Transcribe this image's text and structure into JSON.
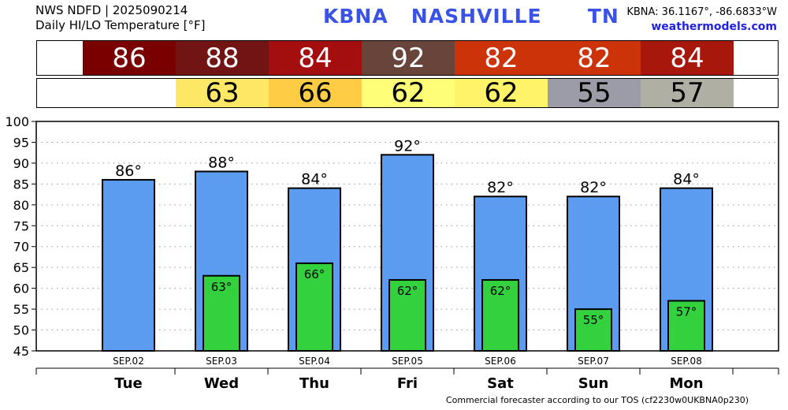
{
  "header": {
    "line1": "NWS NDFD | 2025090214",
    "line2": "Daily HI/LO Temperature [°F]",
    "station": "KBNA   NASHVILLE      TN",
    "coords": "KBNA: 36.1167°, -86.6833°W",
    "site": "weathermodels.com"
  },
  "hi_strip": [
    {
      "value": "86",
      "color": "#7a0000"
    },
    {
      "value": "88",
      "color": "#731414"
    },
    {
      "value": "84",
      "color": "#a40e0e"
    },
    {
      "value": "92",
      "color": "#68443a"
    },
    {
      "value": "82",
      "color": "#cc3308"
    },
    {
      "value": "82",
      "color": "#cc3308"
    },
    {
      "value": "84",
      "color": "#a8170c"
    }
  ],
  "lo_strip": [
    {
      "value": "",
      "color": "#ffffff"
    },
    {
      "value": "63",
      "color": "#ffe866"
    },
    {
      "value": "66",
      "color": "#ffcc44"
    },
    {
      "value": "62",
      "color": "#ffff77"
    },
    {
      "value": "62",
      "color": "#fff36a"
    },
    {
      "value": "55",
      "color": "#9c9ca9"
    },
    {
      "value": "57",
      "color": "#afafa3"
    }
  ],
  "chart_data": {
    "type": "bar",
    "categories": [
      "Tue",
      "Wed",
      "Thu",
      "Fri",
      "Sat",
      "Sun",
      "Mon"
    ],
    "dates": [
      "SEP.02",
      "SEP.03",
      "SEP.04",
      "SEP.05",
      "SEP.06",
      "SEP.07",
      "SEP.08"
    ],
    "series": [
      {
        "values": [
          86,
          88,
          84,
          92,
          82,
          82,
          84
        ],
        "color": "#5b9cf0",
        "labels": [
          "86°",
          "88°",
          "84°",
          "92°",
          "82°",
          "82°",
          "84°"
        ]
      },
      {
        "values": [
          null,
          63,
          66,
          62,
          62,
          55,
          57
        ],
        "color": "#33d13d",
        "labels": [
          "",
          "63°",
          "66°",
          "62°",
          "62°",
          "55°",
          "57°"
        ]
      }
    ],
    "ylim": [
      45,
      100
    ],
    "yticks": [
      "45",
      "50",
      "55",
      "60",
      "65",
      "70",
      "75",
      "80",
      "85",
      "90",
      "95",
      "100"
    ],
    "grid": true
  },
  "footer": "Commercial forecaster according to our TOS (cf2230w0UKBNA0p230)"
}
